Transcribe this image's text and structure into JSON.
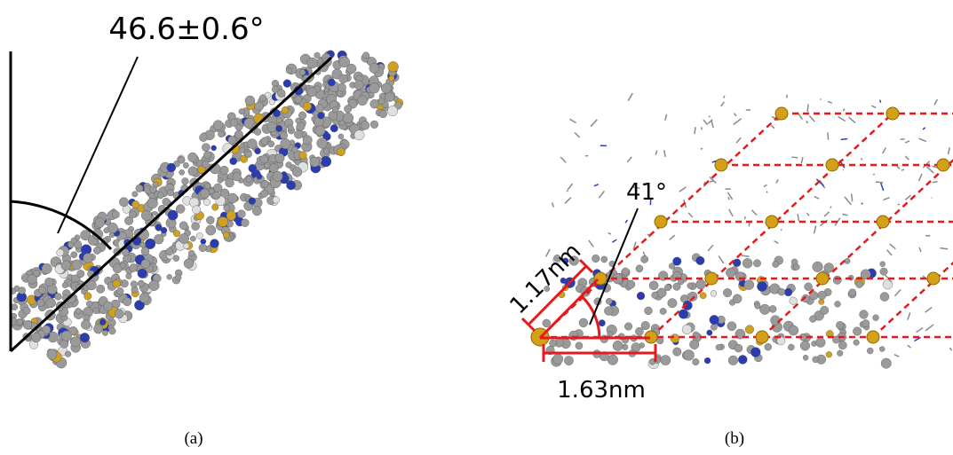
{
  "panels": [
    {
      "label": "(a)",
      "annotations": [
        "46.6±0.6°"
      ]
    },
    {
      "label": "(b)",
      "annotations": [
        "41°",
        "1.17nm",
        "1.63nm"
      ]
    }
  ]
}
